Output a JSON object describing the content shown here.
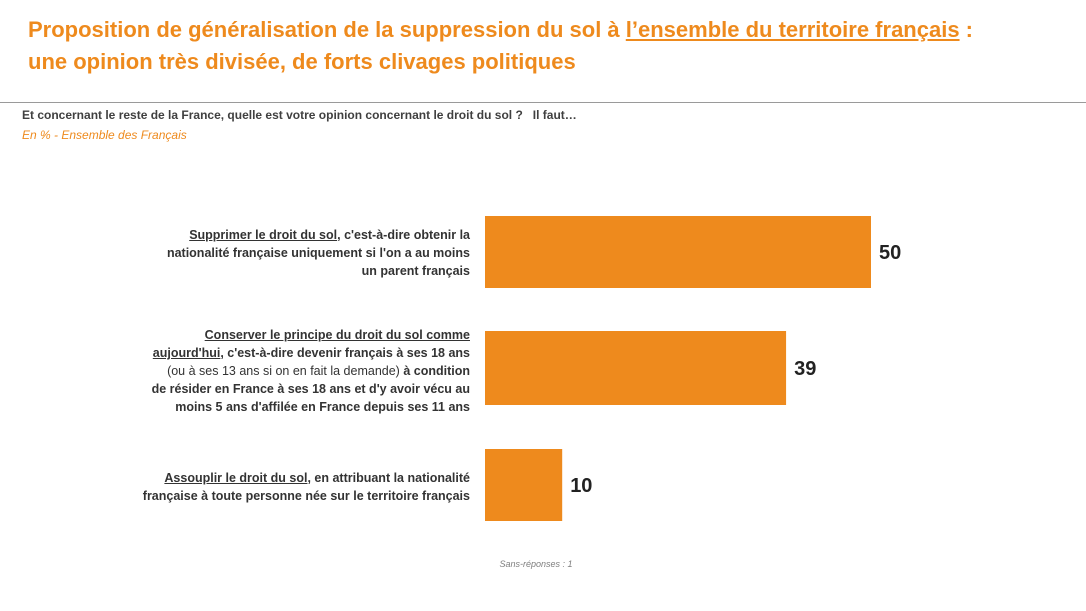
{
  "title": {
    "line1_before": "Proposition de généralisation de la suppression du sol à ",
    "line1_underlined": "l’ensemble du territoire français",
    "line1_after": " :",
    "line2": "une opinion très divisée, de forts clivages politiques"
  },
  "question": {
    "text": "Et concernant le reste de la France, quelle est votre opinion concernant le droit du sol ?",
    "suffix": "Il faut…"
  },
  "base": "En % - Ensemble des Français",
  "footnote": "Sans-réponses : 1",
  "labels": [
    {
      "underlined": "Supprimer le droit du sol",
      "rest1": ", c'est-à-dire obtenir la",
      "line2": "nationalité française uniquement si l'on a au moins",
      "line3": "un parent français"
    },
    {
      "underlined1": "Conserver le principe du droit du sol comme",
      "underlined2": "aujourd'hui",
      "rest2": ", c'est-à-dire devenir français à ses 18 ans",
      "normal3": "(ou à ses 13 ans si on en fait la demande)",
      "bold3": " à condition",
      "line4": "de résider en France à ses 18 ans et d'y avoir vécu au",
      "line5": "moins 5 ans d'affilée en France depuis ses 11 ans"
    },
    {
      "underlined": "Assouplir le droit du sol",
      "rest1": ", en attribuant la nationalité",
      "line2": "française à toute personne née sur le territoire français"
    }
  ],
  "colors": {
    "accent": "#EE8A1D",
    "bar": "#EE8A1D",
    "value_text": "#222222"
  },
  "chart_data": {
    "type": "bar",
    "orientation": "horizontal",
    "categories": [
      "Supprimer le droit du sol, c'est-à-dire obtenir la nationalité française uniquement si l'on a au moins un parent français",
      "Conserver le principe du droit du sol comme aujourd'hui, c'est-à-dire devenir français à ses 18 ans (ou à ses 13 ans si on en fait la demande) à condition de résider en France à ses 18 ans et d'y avoir vécu au moins 5 ans d'affilée en France depuis ses 11 ans",
      "Assouplir le droit du sol, en attribuant la nationalité française à toute personne née sur le territoire français"
    ],
    "values": [
      50,
      39,
      10
    ],
    "value_labels": [
      "50",
      "39",
      "10"
    ],
    "xlim": [
      0,
      100
    ],
    "grid": false,
    "legend": "none"
  }
}
